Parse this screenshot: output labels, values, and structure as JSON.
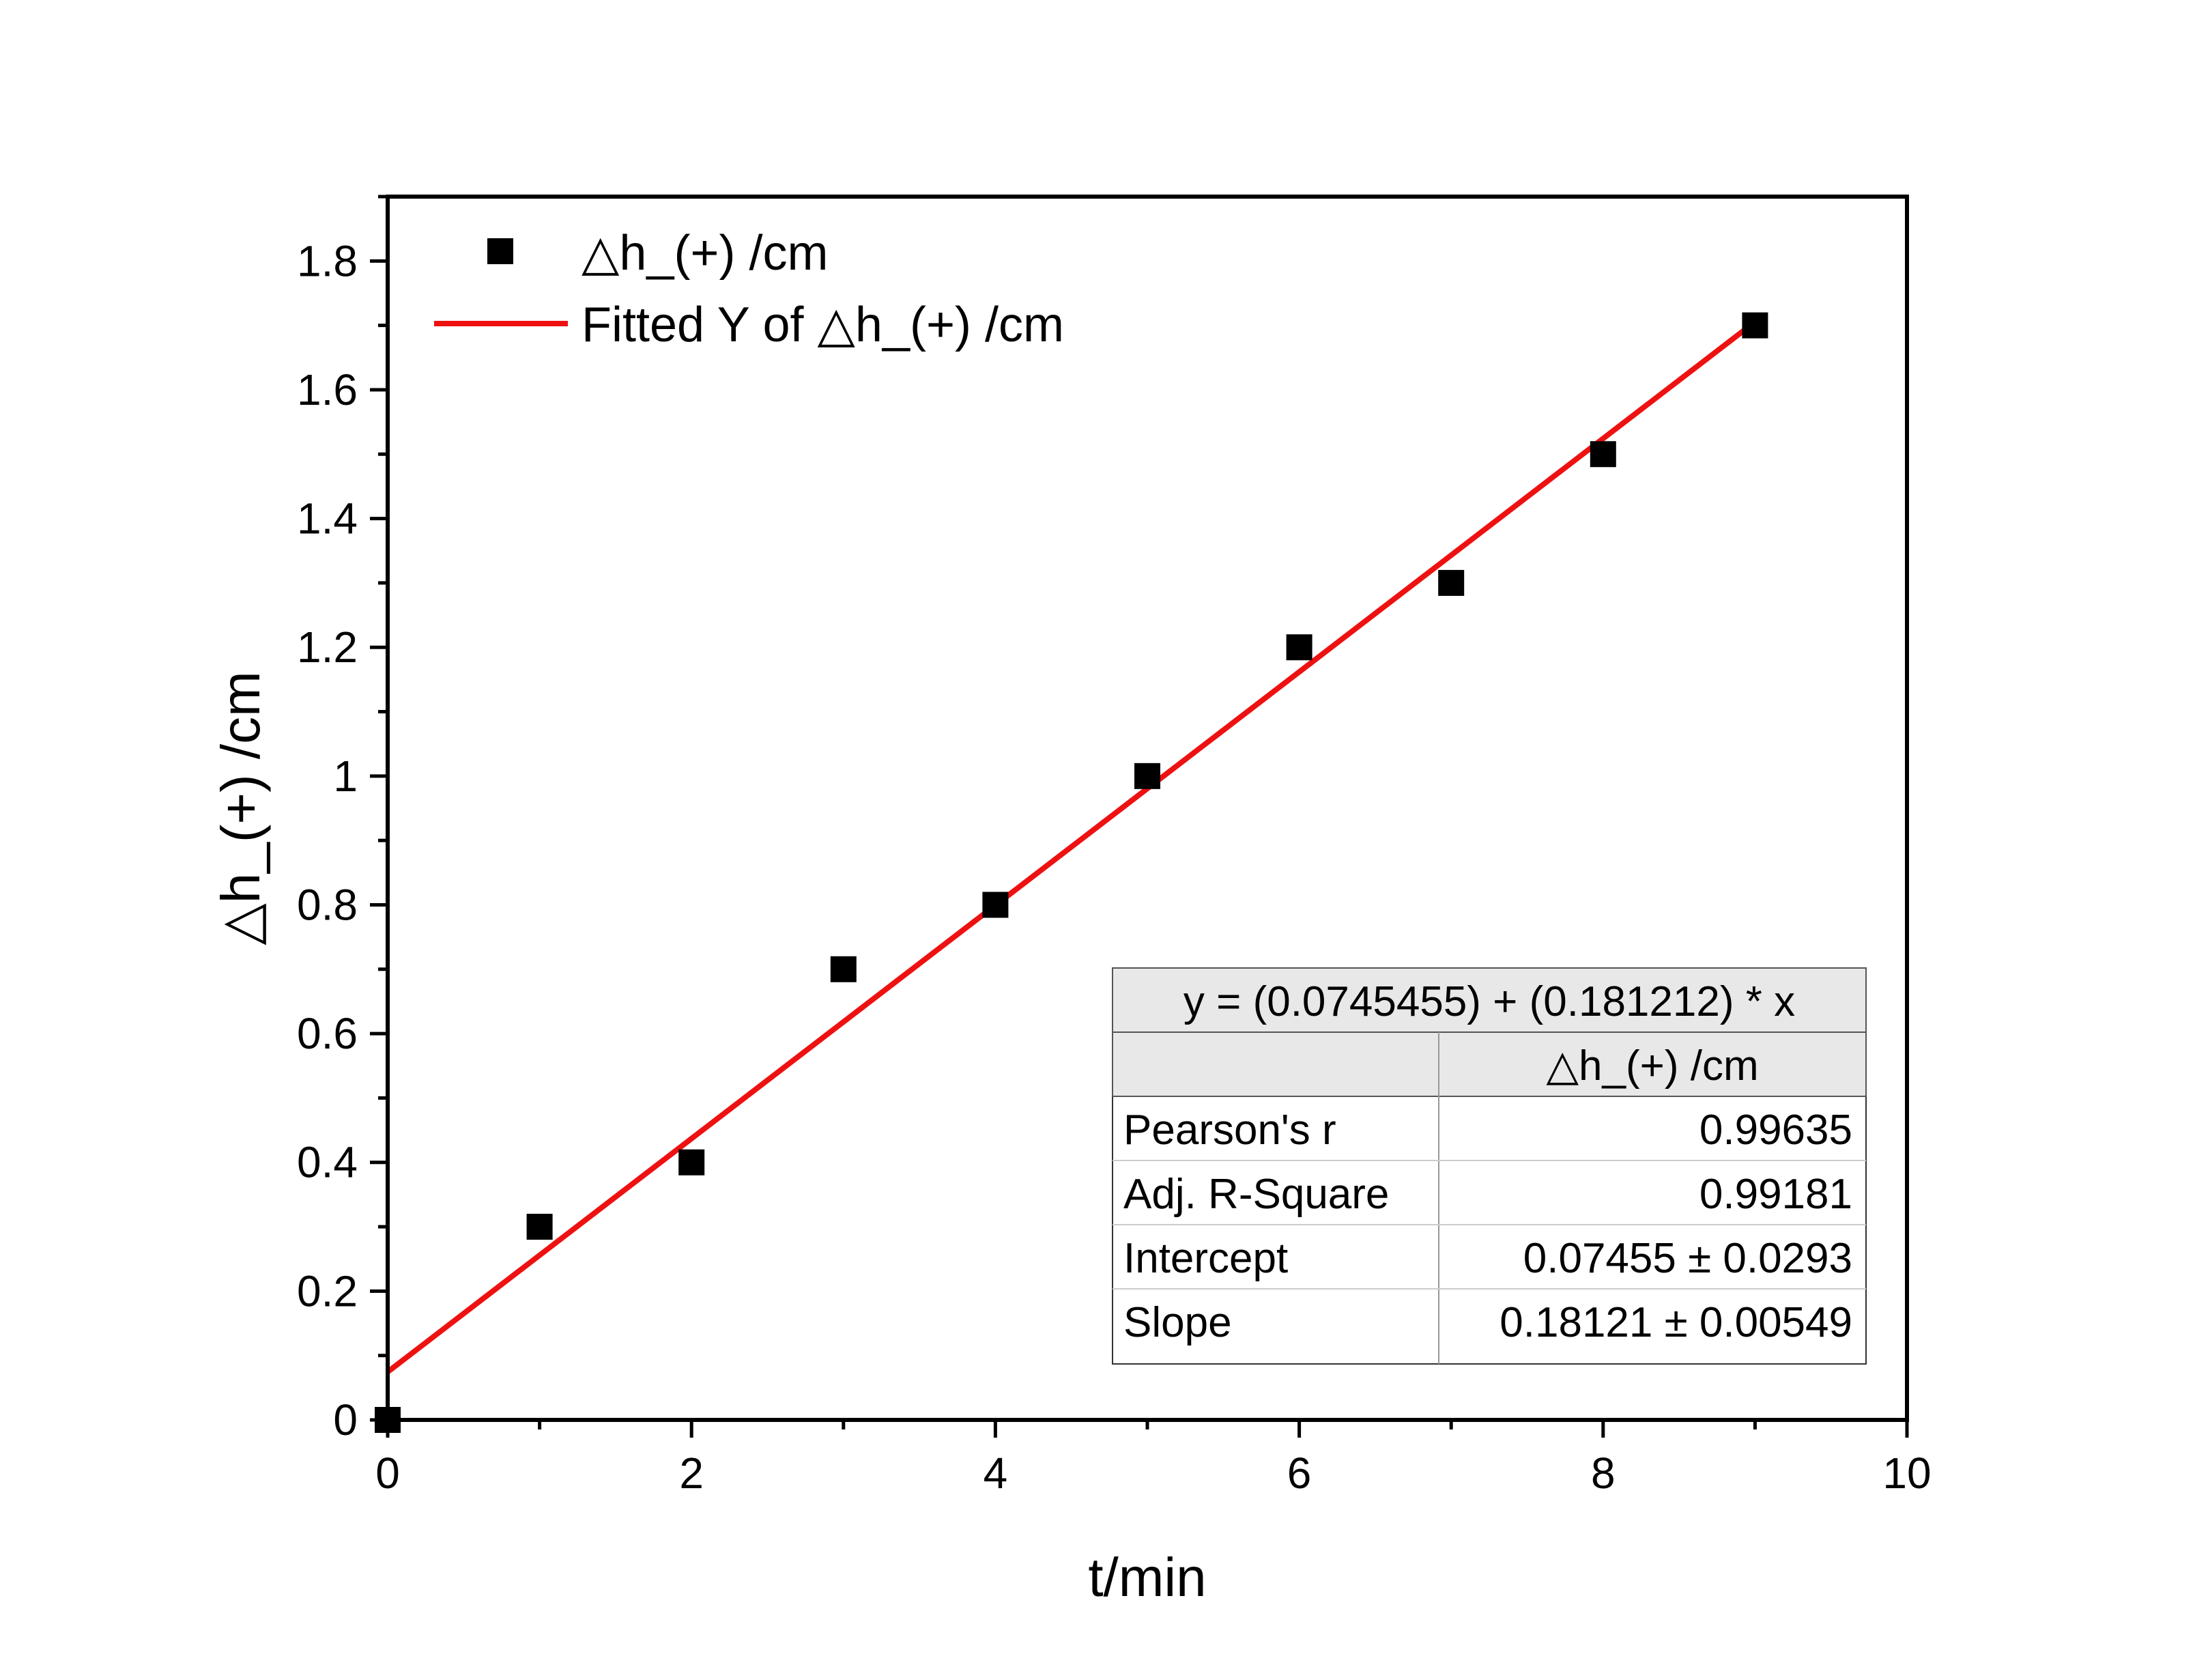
{
  "chart_data": {
    "type": "scatter",
    "xlabel": "t/min",
    "ylabel": "△h_(+) /cm",
    "xlim": [
      0,
      10
    ],
    "ylim": [
      0,
      1.9
    ],
    "x_ticks": [
      "0",
      "2",
      "4",
      "6",
      "8",
      "10"
    ],
    "y_ticks": [
      "0",
      "0.2",
      "0.4",
      "0.6",
      "0.8",
      "1",
      "1.2",
      "1.4",
      "1.6",
      "1.8"
    ],
    "grid": false,
    "legend_position": "top-left",
    "series": [
      {
        "name": "△h_(+) /cm",
        "kind": "scatter",
        "marker": "square",
        "color": "#000000",
        "x": [
          0,
          1,
          2,
          3,
          4,
          5,
          6,
          7,
          8,
          9
        ],
        "y": [
          0,
          0.3,
          0.4,
          0.7,
          0.8,
          1.0,
          1.2,
          1.3,
          1.5,
          1.7
        ]
      },
      {
        "name": "Fitted Y of △h_(+) /cm",
        "kind": "line",
        "color": "#ee1111",
        "intercept": 0.0745455,
        "slope": 0.181212,
        "x_range": [
          0,
          9
        ]
      }
    ],
    "stats_table": {
      "equation": "y = (0.0745455) + (0.181212) * x",
      "column_header": "△h_(+) /cm",
      "rows": [
        {
          "label": "Pearson's r",
          "value": "0.99635"
        },
        {
          "label": "Adj. R-Square",
          "value": "0.99181"
        },
        {
          "label": "Intercept",
          "value": "0.07455 ± 0.0293"
        },
        {
          "label": "Slope",
          "value": "0.18121 ± 0.00549"
        }
      ]
    }
  }
}
